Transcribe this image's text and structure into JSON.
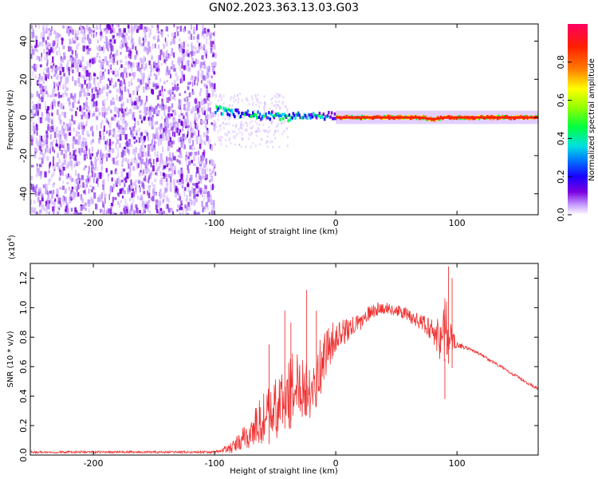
{
  "figure_title": "GN02.2023.363.13.03.G03",
  "chart_data": [
    {
      "type": "heatmap",
      "title": "",
      "xlabel": "Height of straight line (km)",
      "ylabel": "Frequency (Hz)",
      "xlim": [
        -252,
        167
      ],
      "ylim": [
        -51,
        49
      ],
      "x_ticks": [
        -200,
        -100,
        0,
        100
      ],
      "y_ticks": [
        -40,
        -20,
        0,
        20,
        40
      ],
      "noise_region_x": [
        -252,
        -100
      ],
      "signal_start_x": -100,
      "signal_track": [
        {
          "x": -100,
          "y": 4
        },
        {
          "x": -90,
          "y": 3
        },
        {
          "x": -80,
          "y": 2
        },
        {
          "x": -70,
          "y": 1
        },
        {
          "x": -60,
          "y": 1
        },
        {
          "x": -50,
          "y": 1
        },
        {
          "x": -40,
          "y": 0
        },
        {
          "x": -30,
          "y": 1
        },
        {
          "x": -20,
          "y": 0
        },
        {
          "x": -10,
          "y": 1
        },
        {
          "x": 0,
          "y": 0
        },
        {
          "x": 70,
          "y": 0
        },
        {
          "x": 80,
          "y": -1
        },
        {
          "x": 90,
          "y": 0
        },
        {
          "x": 167,
          "y": 0
        }
      ],
      "colorbar": {
        "label": "Normalized spectral amplitude",
        "range": [
          0,
          1
        ],
        "ticks": [
          "0.0",
          "0.2",
          "0.4",
          "0.6",
          "0.8"
        ],
        "colors": [
          "#ffffff",
          "#c8a0ff",
          "#7b00e0",
          "#1a00ff",
          "#0070ff",
          "#00e0e0",
          "#00ff40",
          "#90ff00",
          "#ffff00",
          "#ff8000",
          "#ff2000",
          "#ff0060"
        ]
      },
      "colormap_colors": {
        "noise": "#7b00e0",
        "light": "#d6b8ff",
        "track": "#ff2000"
      }
    },
    {
      "type": "line",
      "title": "",
      "xlabel": "Height of straight line (km)",
      "ylabel": "SNR (10 * v/v)",
      "y_multiplier_label": "(x10",
      "y_multiplier_exp": "4",
      "xlim": [
        -252,
        167
      ],
      "ylim": [
        0,
        1.3
      ],
      "x_ticks": [
        -200,
        -100,
        0,
        100
      ],
      "y_ticks": [
        "0.0",
        "0.2",
        "0.4",
        "0.6",
        "0.8",
        "1.0",
        "1.2"
      ],
      "line_color": "#ee3333",
      "series": [
        {
          "x": [
            -252,
            -200,
            -150,
            -100,
            -85,
            -70,
            -60,
            -50,
            -40,
            -30,
            -20,
            -15,
            -10,
            -5,
            0,
            10,
            20,
            30,
            40,
            50,
            60,
            70,
            80,
            85,
            90,
            95,
            100,
            110,
            120,
            130,
            140,
            150,
            160,
            167
          ],
          "values": [
            0.02,
            0.02,
            0.02,
            0.02,
            0.05,
            0.15,
            0.25,
            0.3,
            0.4,
            0.5,
            0.45,
            0.55,
            0.65,
            0.75,
            0.8,
            0.85,
            0.9,
            0.98,
            1.0,
            0.98,
            0.95,
            0.9,
            0.85,
            0.8,
            0.85,
            0.8,
            0.75,
            0.72,
            0.68,
            0.63,
            0.58,
            0.53,
            0.48,
            0.45
          ],
          "noise": [
            0.008,
            0.008,
            0.008,
            0.008,
            0.04,
            0.12,
            0.18,
            0.22,
            0.25,
            0.25,
            0.2,
            0.2,
            0.18,
            0.15,
            0.1,
            0.08,
            0.06,
            0.05,
            0.04,
            0.04,
            0.05,
            0.06,
            0.08,
            0.15,
            0.25,
            0.1,
            0.02,
            0.01,
            0.01,
            0.01,
            0.01,
            0.01,
            0.01,
            0.01
          ]
        }
      ],
      "spikes": [
        {
          "x": -55,
          "y": 0.75
        },
        {
          "x": -42,
          "y": 0.98
        },
        {
          "x": -37,
          "y": 0.9
        },
        {
          "x": -24,
          "y": 1.12
        },
        {
          "x": -16,
          "y": 0.98
        },
        {
          "x": 90,
          "y": 0.38
        },
        {
          "x": 93,
          "y": 1.28
        },
        {
          "x": 96,
          "y": 1.2
        }
      ]
    }
  ]
}
